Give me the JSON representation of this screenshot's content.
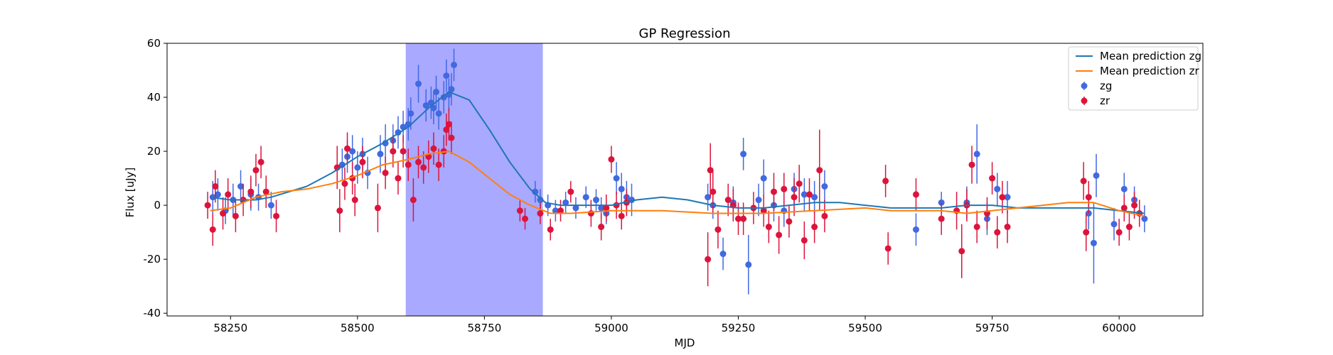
{
  "chart_data": {
    "type": "scatter",
    "title": "GP Regression",
    "xlabel": "MJD",
    "ylabel": "Flux [uJy]",
    "xlim": [
      58125,
      60165
    ],
    "ylim": [
      -41,
      60
    ],
    "xticks": [
      58250,
      58500,
      58750,
      59000,
      59250,
      59500,
      59750,
      60000
    ],
    "yticks": [
      -40,
      -20,
      0,
      20,
      40,
      60
    ],
    "grid": false,
    "legend_position": "top-right",
    "shaded_region": {
      "x_start": 58595,
      "x_end": 58865,
      "color": "#a9a9ff"
    },
    "series": [
      {
        "name": "Mean prediction zg",
        "kind": "line",
        "color": "#1f77b4",
        "x": [
          58210,
          58250,
          58300,
          58330,
          58400,
          58450,
          58500,
          58550,
          58600,
          58640,
          58680,
          58720,
          58760,
          58800,
          58840,
          58870,
          58900,
          58950,
          59000,
          59050,
          59100,
          59150,
          59200,
          59250,
          59300,
          59350,
          59400,
          59450,
          59500,
          59550,
          59600,
          59650,
          59700,
          59750,
          59800,
          59850,
          59900,
          59950,
          60000,
          60050
        ],
        "y": [
          3,
          2,
          2,
          3,
          7,
          12,
          18,
          23,
          29,
          36,
          42,
          39,
          28,
          16,
          6,
          1,
          0,
          0,
          0,
          2,
          3,
          2,
          0,
          -1,
          -1,
          0,
          1,
          1,
          0,
          -1,
          -1,
          -1,
          0,
          0,
          -1,
          -1,
          -1,
          -1,
          -2,
          -3
        ]
      },
      {
        "name": "Mean prediction zr",
        "kind": "line",
        "color": "#ff7f0e",
        "x": [
          58210,
          58250,
          58300,
          58350,
          58400,
          58450,
          58500,
          58550,
          58600,
          58640,
          58680,
          58720,
          58760,
          58800,
          58840,
          58880,
          58920,
          59000,
          59100,
          59200,
          59250,
          59300,
          59400,
          59500,
          59550,
          59600,
          59650,
          59700,
          59750,
          59800,
          59850,
          59900,
          59950,
          60000,
          60050
        ],
        "y": [
          -2,
          -1,
          3,
          5,
          6,
          8,
          11,
          15,
          17,
          19,
          20,
          16,
          10,
          4,
          0,
          -3,
          -3,
          -2,
          -2,
          -3,
          -3,
          -3,
          -2,
          -1,
          -2,
          -2,
          -2,
          -3,
          -2,
          -1,
          0,
          1,
          1,
          -2,
          -4
        ]
      },
      {
        "name": "zg",
        "kind": "errorbar",
        "color": "#4169e1",
        "x": [
          58215,
          58225,
          58240,
          58255,
          58270,
          58290,
          58305,
          58330,
          58470,
          58480,
          58490,
          58500,
          58510,
          58520,
          58545,
          58555,
          58570,
          58580,
          58590,
          58600,
          58605,
          58620,
          58635,
          58645,
          58650,
          58655,
          58660,
          58670,
          58675,
          58680,
          58685,
          58690,
          58850,
          58860,
          58875,
          58890,
          58910,
          58930,
          58950,
          58970,
          58980,
          58990,
          59010,
          59020,
          59030,
          59040,
          59190,
          59200,
          59220,
          59240,
          59260,
          59270,
          59290,
          59300,
          59320,
          59340,
          59360,
          59380,
          59400,
          59420,
          59600,
          59650,
          59700,
          59720,
          59740,
          59760,
          59780,
          59940,
          59950,
          59955,
          59990,
          60010,
          60030,
          60050
        ],
        "y": [
          3,
          4,
          -2,
          2,
          7,
          4,
          3,
          0,
          15,
          18,
          20,
          14,
          19,
          12,
          19,
          23,
          24,
          27,
          29,
          30,
          34,
          45,
          37,
          38,
          36,
          42,
          34,
          40,
          48,
          41,
          43,
          52,
          5,
          2,
          0,
          -2,
          1,
          -1,
          3,
          2,
          -1,
          -3,
          10,
          6,
          3,
          2,
          3,
          0,
          -18,
          1,
          19,
          -22,
          2,
          10,
          0,
          -2,
          6,
          4,
          3,
          7,
          -9,
          1,
          1,
          19,
          -5,
          6,
          3,
          -3,
          -14,
          11,
          -7,
          6,
          2,
          -5
        ],
        "err": [
          6,
          6,
          5,
          6,
          6,
          6,
          5,
          5,
          6,
          6,
          6,
          6,
          6,
          6,
          7,
          7,
          6,
          6,
          6,
          6,
          6,
          7,
          6,
          6,
          6,
          6,
          6,
          6,
          6,
          6,
          6,
          6,
          4,
          4,
          4,
          4,
          4,
          4,
          4,
          4,
          4,
          4,
          6,
          6,
          6,
          6,
          5,
          5,
          6,
          6,
          6,
          11,
          6,
          7,
          6,
          6,
          6,
          6,
          6,
          6,
          6,
          4,
          6,
          11,
          6,
          6,
          6,
          6,
          15,
          8,
          6,
          6,
          5,
          5
        ]
      },
      {
        "name": "zr",
        "kind": "errorbar",
        "color": "#dc143c",
        "x": [
          58205,
          58215,
          58220,
          58235,
          58245,
          58260,
          58275,
          58290,
          58300,
          58310,
          58320,
          58340,
          58460,
          58465,
          58475,
          58480,
          58490,
          58495,
          58510,
          58540,
          58555,
          58570,
          58580,
          58590,
          58600,
          58610,
          58620,
          58630,
          58640,
          58650,
          58660,
          58670,
          58675,
          58680,
          58685,
          58820,
          58830,
          58860,
          58880,
          58900,
          58920,
          58960,
          58980,
          58990,
          59000,
          59010,
          59020,
          59030,
          59190,
          59195,
          59200,
          59210,
          59230,
          59240,
          59250,
          59260,
          59280,
          59300,
          59310,
          59320,
          59330,
          59340,
          59350,
          59360,
          59370,
          59380,
          59390,
          59400,
          59410,
          59420,
          59540,
          59545,
          59600,
          59650,
          59680,
          59690,
          59700,
          59710,
          59720,
          59740,
          59750,
          59760,
          59770,
          59780,
          59930,
          59935,
          59940,
          60000,
          60010,
          60020,
          60030,
          60040
        ],
        "y": [
          0,
          -9,
          7,
          -3,
          4,
          -4,
          2,
          5,
          13,
          16,
          5,
          -4,
          14,
          -2,
          8,
          21,
          10,
          2,
          16,
          -1,
          12,
          20,
          10,
          20,
          15,
          2,
          16,
          14,
          18,
          21,
          15,
          20,
          28,
          30,
          25,
          -2,
          -5,
          -3,
          -9,
          -2,
          5,
          -3,
          -8,
          -1,
          17,
          0,
          -4,
          1,
          -20,
          13,
          5,
          -9,
          2,
          0,
          -5,
          -5,
          -1,
          -2,
          -8,
          5,
          -11,
          6,
          -6,
          3,
          8,
          -13,
          4,
          -8,
          13,
          -4,
          9,
          -16,
          4,
          -5,
          -2,
          -17,
          0,
          15,
          -8,
          -3,
          10,
          -10,
          3,
          -8,
          9,
          -10,
          3,
          -10,
          -1,
          -8,
          0,
          -3
        ],
        "err": [
          5,
          6,
          6,
          6,
          6,
          6,
          6,
          6,
          6,
          6,
          6,
          6,
          8,
          8,
          6,
          6,
          6,
          6,
          6,
          9,
          6,
          6,
          6,
          6,
          6,
          8,
          6,
          6,
          6,
          6,
          6,
          6,
          6,
          6,
          6,
          4,
          4,
          4,
          4,
          4,
          4,
          5,
          5,
          5,
          5,
          5,
          5,
          5,
          10,
          10,
          8,
          7,
          6,
          6,
          6,
          6,
          6,
          6,
          6,
          7,
          7,
          6,
          6,
          7,
          7,
          7,
          6,
          6,
          15,
          6,
          6,
          6,
          6,
          6,
          7,
          10,
          6,
          7,
          6,
          6,
          6,
          6,
          6,
          6,
          7,
          7,
          6,
          5,
          5,
          5,
          5,
          5
        ]
      }
    ],
    "legend": [
      {
        "label": "Mean prediction zg",
        "kind": "line",
        "color": "#1f77b4"
      },
      {
        "label": "Mean prediction zr",
        "kind": "line",
        "color": "#ff7f0e"
      },
      {
        "label": "zg",
        "kind": "errorbar",
        "color": "#4169e1"
      },
      {
        "label": "zr",
        "kind": "errorbar",
        "color": "#dc143c"
      }
    ]
  }
}
